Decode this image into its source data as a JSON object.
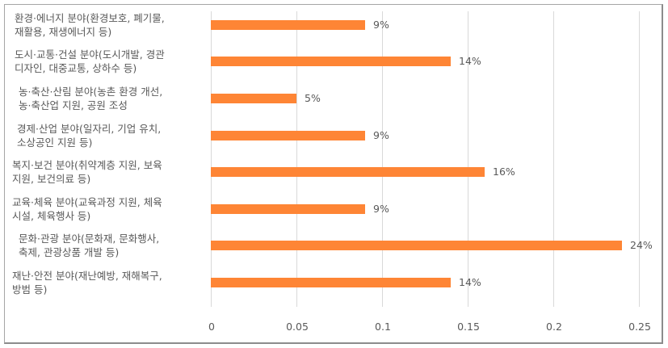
{
  "chart_data": {
    "type": "bar",
    "orientation": "horizontal",
    "title": "",
    "xlabel": "",
    "ylabel": "",
    "xlim": [
      0,
      0.25
    ],
    "grid": true,
    "legend": null,
    "bar_color": "#fe8535",
    "categories": [
      {
        "line1": "환경·에너지 분야(환경보호, 폐기물,",
        "line2": "재활용, 재생에너지 등)"
      },
      {
        "line1": "도시·교통·건설 분야(도시개발, 경관",
        "line2": "디자인, 대중교통, 상하수 등)"
      },
      {
        "line1": "농·축산·산림 분야(농촌 환경 개선,",
        "line2": "농·축산업 지원, 공원 조성"
      },
      {
        "line1": "경제·산업 분야(일자리, 기업 유치,",
        "line2": "소상공인 지원 등)"
      },
      {
        "line1": "복지·보건 분야(취약계층 지원, 보육",
        "line2": "지원, 보건의료 등)"
      },
      {
        "line1": "교육·체육 분야(교육과정 지원, 체육",
        "line2": "시설, 체육행사 등)"
      },
      {
        "line1": "문화·관광 분야(문화재, 문화행사,",
        "line2": "축제, 관광상품 개발 등)"
      },
      {
        "line1": "재난·안전 분야(재난예방, 재해복구,",
        "line2": "방범 등)"
      }
    ],
    "values": [
      0.09,
      0.14,
      0.05,
      0.09,
      0.16,
      0.09,
      0.24,
      0.14
    ],
    "data_labels": [
      "9%",
      "14%",
      "5%",
      "9%",
      "16%",
      "9%",
      "24%",
      "14%"
    ],
    "x_ticks": [
      "0",
      "0.05",
      "0.1",
      "0.15",
      "0.2",
      "0.25"
    ]
  }
}
